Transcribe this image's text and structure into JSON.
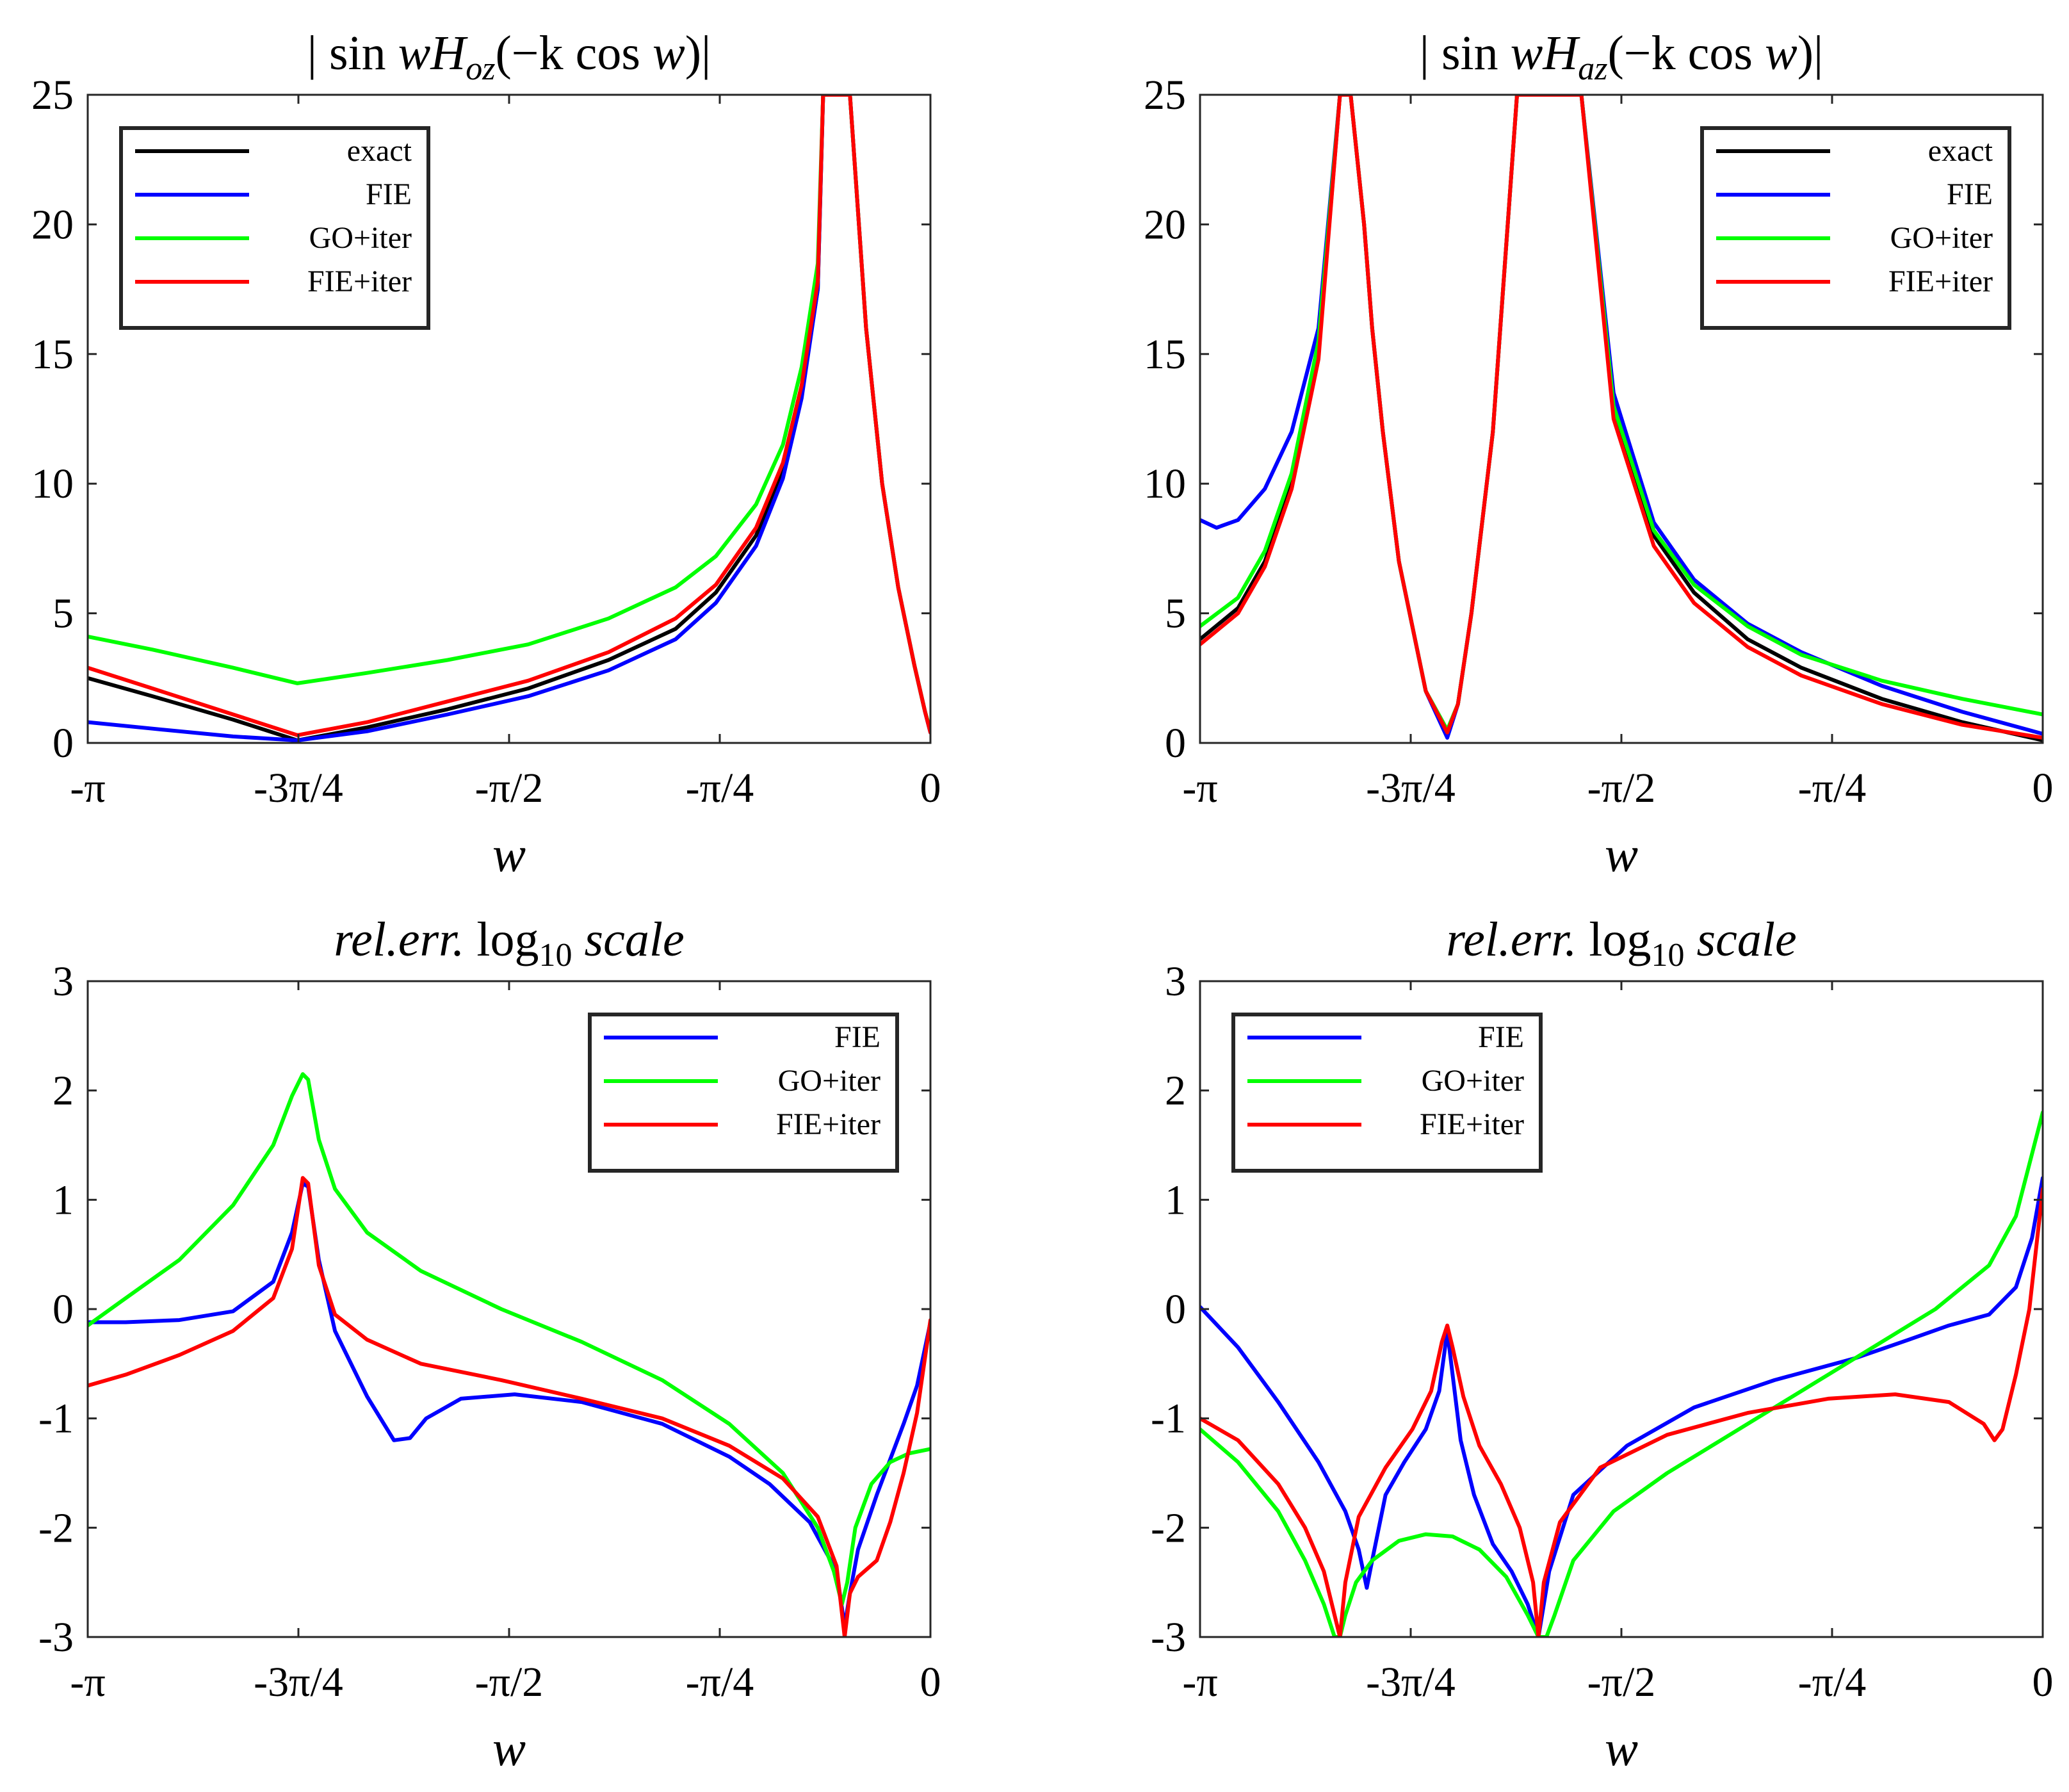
{
  "figure": {
    "panel_count": 4
  },
  "chart_data": [
    {
      "type": "line",
      "title": "|sin wH_oz(−k cos w)|",
      "title_parts": {
        "pre": "| sin ",
        "var": "wH",
        "sub": "oz",
        "mid": "(−k cos ",
        "var2": "w",
        "post": ")|"
      },
      "xlabel": "w",
      "ylabel": "",
      "xlim": [
        -3.14159,
        0
      ],
      "ylim": [
        0,
        25
      ],
      "xtick_values": [
        -3.14159,
        -2.35619,
        -1.5708,
        -0.7854,
        0
      ],
      "xtick_labels": [
        "-π",
        "-3π/4",
        "-π/2",
        "-π/4",
        "0"
      ],
      "ytick_values": [
        0,
        5,
        10,
        15,
        20,
        25
      ],
      "ytick_labels": [
        "0",
        "5",
        "10",
        "15",
        "20",
        "25"
      ],
      "legend_position": "top-left",
      "series": [
        {
          "name": "exact",
          "color": "#000000",
          "x": [
            -3.1416,
            -2.9,
            -2.6,
            -2.36,
            -2.1,
            -1.8,
            -1.5,
            -1.2,
            -0.95,
            -0.8,
            -0.65,
            -0.55,
            -0.48,
            -0.42,
            -0.4,
            -0.3,
            -0.24,
            -0.18,
            -0.12,
            -0.06,
            -0.02,
            0
          ],
          "y": [
            2.5,
            1.8,
            0.9,
            0.1,
            0.6,
            1.3,
            2.1,
            3.2,
            4.4,
            5.8,
            8.0,
            10.5,
            13.5,
            17.5,
            25.0,
            25.0,
            16.0,
            10.0,
            6.0,
            3.0,
            1.2,
            0.4
          ]
        },
        {
          "name": "FIE",
          "color": "#0000ff",
          "x": [
            -3.1416,
            -2.9,
            -2.6,
            -2.36,
            -2.1,
            -1.8,
            -1.5,
            -1.2,
            -0.95,
            -0.8,
            -0.65,
            -0.55,
            -0.48,
            -0.42,
            -0.4,
            -0.3,
            -0.24,
            -0.18,
            -0.12,
            -0.06,
            -0.02,
            0
          ],
          "y": [
            0.8,
            0.55,
            0.25,
            0.1,
            0.45,
            1.1,
            1.8,
            2.8,
            4.0,
            5.4,
            7.6,
            10.2,
            13.3,
            17.5,
            25.0,
            25.0,
            16.0,
            10.0,
            6.0,
            3.0,
            1.2,
            0.4
          ]
        },
        {
          "name": "GO+iter",
          "color": "#00ff00",
          "x": [
            -3.1416,
            -2.9,
            -2.6,
            -2.36,
            -2.1,
            -1.8,
            -1.5,
            -1.2,
            -0.95,
            -0.8,
            -0.65,
            -0.55,
            -0.48,
            -0.42,
            -0.4,
            -0.3,
            -0.24,
            -0.18,
            -0.12,
            -0.06,
            -0.02,
            0
          ],
          "y": [
            4.1,
            3.6,
            2.9,
            2.3,
            2.7,
            3.2,
            3.8,
            4.8,
            6.0,
            7.2,
            9.2,
            11.5,
            14.5,
            18.5,
            25.0,
            25.0,
            16.0,
            10.0,
            6.0,
            3.0,
            1.2,
            0.5
          ]
        },
        {
          "name": "FIE+iter",
          "color": "#ff0000",
          "x": [
            -3.1416,
            -2.9,
            -2.6,
            -2.36,
            -2.1,
            -1.8,
            -1.5,
            -1.2,
            -0.95,
            -0.8,
            -0.65,
            -0.55,
            -0.48,
            -0.42,
            -0.4,
            -0.3,
            -0.24,
            -0.18,
            -0.12,
            -0.06,
            -0.02,
            0
          ],
          "y": [
            2.9,
            2.1,
            1.1,
            0.3,
            0.8,
            1.6,
            2.4,
            3.5,
            4.8,
            6.1,
            8.3,
            10.8,
            13.8,
            17.8,
            25.0,
            25.0,
            16.0,
            10.0,
            6.0,
            3.0,
            1.2,
            0.4
          ]
        }
      ]
    },
    {
      "type": "line",
      "title": "|sin wH_az(−k cos w)|",
      "title_parts": {
        "pre": "| sin ",
        "var": "wH",
        "sub": "az",
        "mid": "(−k cos ",
        "var2": "w",
        "post": ")|"
      },
      "xlabel": "w",
      "ylabel": "",
      "xlim": [
        -3.14159,
        0
      ],
      "ylim": [
        0,
        25
      ],
      "xtick_values": [
        -3.14159,
        -2.35619,
        -1.5708,
        -0.7854,
        0
      ],
      "xtick_labels": [
        "-π",
        "-3π/4",
        "-π/2",
        "-π/4",
        "0"
      ],
      "ytick_values": [
        0,
        5,
        10,
        15,
        20,
        25
      ],
      "ytick_labels": [
        "0",
        "5",
        "10",
        "15",
        "20",
        "25"
      ],
      "legend_position": "top-right",
      "series": [
        {
          "name": "exact",
          "color": "#000000",
          "x": [
            -3.1416,
            -3.0,
            -2.9,
            -2.8,
            -2.7,
            -2.62,
            -2.58,
            -2.53,
            -2.5,
            -2.46,
            -2.4,
            -2.3,
            -2.22,
            -2.18,
            -2.13,
            -2.05,
            -1.96,
            -1.92,
            -1.76,
            -1.72,
            -1.6,
            -1.45,
            -1.3,
            -1.1,
            -0.9,
            -0.6,
            -0.3,
            0
          ],
          "y": [
            4.0,
            5.2,
            7.0,
            10.0,
            15.0,
            25.0,
            25.0,
            20.0,
            16.0,
            12.0,
            7.0,
            2.0,
            0.3,
            1.5,
            5.0,
            12.0,
            25.0,
            25.0,
            25.0,
            25.0,
            13.0,
            8.0,
            5.8,
            4.0,
            2.9,
            1.7,
            0.8,
            0.1
          ]
        },
        {
          "name": "FIE",
          "color": "#0000ff",
          "x": [
            -3.1416,
            -3.08,
            -3.0,
            -2.9,
            -2.8,
            -2.7,
            -2.62,
            -2.58,
            -2.53,
            -2.5,
            -2.46,
            -2.4,
            -2.3,
            -2.22,
            -2.18,
            -2.13,
            -2.05,
            -1.96,
            -1.92,
            -1.76,
            -1.72,
            -1.6,
            -1.45,
            -1.3,
            -1.1,
            -0.9,
            -0.6,
            -0.3,
            0
          ],
          "y": [
            8.6,
            8.3,
            8.6,
            9.8,
            12.0,
            16.0,
            25.0,
            25.0,
            20.0,
            16.0,
            12.0,
            7.0,
            2.0,
            0.2,
            1.5,
            5.0,
            12.0,
            25.0,
            25.0,
            25.0,
            25.0,
            13.5,
            8.5,
            6.3,
            4.6,
            3.5,
            2.2,
            1.2,
            0.35
          ]
        },
        {
          "name": "GO+iter",
          "color": "#00ff00",
          "x": [
            -3.1416,
            -3.0,
            -2.9,
            -2.8,
            -2.7,
            -2.62,
            -2.58,
            -2.53,
            -2.5,
            -2.46,
            -2.4,
            -2.3,
            -2.22,
            -2.18,
            -2.13,
            -2.05,
            -1.96,
            -1.92,
            -1.76,
            -1.72,
            -1.6,
            -1.45,
            -1.3,
            -1.1,
            -0.9,
            -0.6,
            -0.3,
            0
          ],
          "y": [
            4.5,
            5.6,
            7.4,
            10.4,
            15.5,
            25.0,
            25.0,
            20.0,
            16.0,
            12.0,
            7.0,
            2.0,
            0.5,
            1.5,
            5.0,
            12.0,
            25.0,
            25.0,
            25.0,
            25.0,
            13.0,
            8.2,
            6.1,
            4.5,
            3.4,
            2.4,
            1.7,
            1.1
          ]
        },
        {
          "name": "FIE+iter",
          "color": "#ff0000",
          "x": [
            -3.1416,
            -3.0,
            -2.9,
            -2.8,
            -2.7,
            -2.62,
            -2.58,
            -2.53,
            -2.5,
            -2.46,
            -2.4,
            -2.3,
            -2.22,
            -2.18,
            -2.13,
            -2.05,
            -1.96,
            -1.92,
            -1.76,
            -1.72,
            -1.6,
            -1.45,
            -1.3,
            -1.1,
            -0.9,
            -0.6,
            -0.3,
            0
          ],
          "y": [
            3.8,
            5.0,
            6.8,
            9.8,
            14.8,
            25.0,
            25.0,
            20.0,
            16.0,
            12.0,
            7.0,
            2.0,
            0.4,
            1.5,
            5.0,
            12.0,
            25.0,
            25.0,
            25.0,
            25.0,
            12.5,
            7.6,
            5.4,
            3.7,
            2.6,
            1.5,
            0.7,
            0.2
          ]
        }
      ]
    },
    {
      "type": "line",
      "title": "rel.err. log10 scale",
      "title_parts": {
        "pre": "rel.err.",
        "func": "log",
        "sub": "10",
        "post": "scale"
      },
      "xlabel": "w",
      "ylabel": "",
      "xlim": [
        -3.14159,
        0
      ],
      "ylim": [
        -3,
        3
      ],
      "xtick_values": [
        -3.14159,
        -2.35619,
        -1.5708,
        -0.7854,
        0
      ],
      "xtick_labels": [
        "-π",
        "-3π/4",
        "-π/2",
        "-π/4",
        "0"
      ],
      "ytick_values": [
        -3,
        -2,
        -1,
        0,
        1,
        2,
        3
      ],
      "ytick_labels": [
        "-3",
        "-2",
        "-1",
        "0",
        "1",
        "2",
        "3"
      ],
      "legend_position": "top-right",
      "series": [
        {
          "name": "FIE",
          "color": "#0000ff",
          "x": [
            -3.1416,
            -3.0,
            -2.8,
            -2.6,
            -2.45,
            -2.38,
            -2.34,
            -2.32,
            -2.28,
            -2.22,
            -2.1,
            -2.0,
            -1.94,
            -1.88,
            -1.75,
            -1.55,
            -1.3,
            -1.0,
            -0.75,
            -0.6,
            -0.45,
            -0.35,
            -0.32,
            -0.3,
            -0.27,
            -0.2,
            -0.1,
            -0.05,
            0
          ],
          "y": [
            -0.12,
            -0.12,
            -0.1,
            -0.02,
            0.25,
            0.7,
            1.15,
            1.12,
            0.45,
            -0.2,
            -0.8,
            -1.2,
            -1.18,
            -1.0,
            -0.82,
            -0.78,
            -0.85,
            -1.05,
            -1.35,
            -1.6,
            -1.95,
            -2.4,
            -2.9,
            -2.6,
            -2.2,
            -1.7,
            -1.05,
            -0.7,
            -0.12
          ]
        },
        {
          "name": "GO+iter",
          "color": "#00ff00",
          "x": [
            -3.1416,
            -3.0,
            -2.8,
            -2.6,
            -2.45,
            -2.38,
            -2.34,
            -2.32,
            -2.28,
            -2.22,
            -2.1,
            -1.9,
            -1.6,
            -1.3,
            -1.0,
            -0.75,
            -0.55,
            -0.42,
            -0.36,
            -0.33,
            -0.31,
            -0.28,
            -0.22,
            -0.15,
            -0.08,
            0
          ],
          "y": [
            -0.15,
            0.1,
            0.45,
            0.95,
            1.5,
            1.95,
            2.15,
            2.1,
            1.55,
            1.1,
            0.7,
            0.35,
            0.0,
            -0.3,
            -0.65,
            -1.05,
            -1.5,
            -2.0,
            -2.4,
            -2.7,
            -2.5,
            -2.0,
            -1.6,
            -1.4,
            -1.32,
            -1.28
          ]
        },
        {
          "name": "FIE+iter",
          "color": "#ff0000",
          "x": [
            -3.1416,
            -3.0,
            -2.8,
            -2.6,
            -2.45,
            -2.38,
            -2.34,
            -2.32,
            -2.28,
            -2.22,
            -2.1,
            -1.9,
            -1.6,
            -1.3,
            -1.0,
            -0.75,
            -0.55,
            -0.42,
            -0.35,
            -0.32,
            -0.3,
            -0.27,
            -0.2,
            -0.15,
            -0.1,
            -0.05,
            0
          ],
          "y": [
            -0.7,
            -0.6,
            -0.42,
            -0.2,
            0.1,
            0.55,
            1.2,
            1.15,
            0.4,
            -0.05,
            -0.28,
            -0.5,
            -0.65,
            -0.82,
            -1.0,
            -1.25,
            -1.55,
            -1.9,
            -2.35,
            -3.0,
            -2.6,
            -2.45,
            -2.3,
            -1.95,
            -1.5,
            -0.95,
            -0.1
          ]
        }
      ]
    },
    {
      "type": "line",
      "title": "rel.err. log10 scale",
      "title_parts": {
        "pre": "rel.err.",
        "func": "log",
        "sub": "10",
        "post": "scale"
      },
      "xlabel": "w",
      "ylabel": "",
      "xlim": [
        -3.14159,
        0
      ],
      "ylim": [
        -3,
        3
      ],
      "xtick_values": [
        -3.14159,
        -2.35619,
        -1.5708,
        -0.7854,
        0
      ],
      "xtick_labels": [
        "-π",
        "-3π/4",
        "-π/2",
        "-π/4",
        "0"
      ],
      "ytick_values": [
        -3,
        -2,
        -1,
        0,
        1,
        2,
        3
      ],
      "ytick_labels": [
        "-3",
        "-2",
        "-1",
        "0",
        "1",
        "2",
        "3"
      ],
      "legend_position": "top-left",
      "series": [
        {
          "name": "FIE",
          "color": "#0000ff",
          "x": [
            -3.1416,
            -3.0,
            -2.85,
            -2.7,
            -2.6,
            -2.55,
            -2.52,
            -2.5,
            -2.45,
            -2.38,
            -2.3,
            -2.25,
            -2.22,
            -2.2,
            -2.17,
            -2.12,
            -2.05,
            -1.98,
            -1.92,
            -1.88,
            -1.86,
            -1.84,
            -1.75,
            -1.55,
            -1.3,
            -1.0,
            -0.7,
            -0.5,
            -0.35,
            -0.2,
            -0.1,
            -0.04,
            0
          ],
          "y": [
            0.02,
            -0.35,
            -0.85,
            -1.4,
            -1.85,
            -2.2,
            -2.55,
            -2.3,
            -1.7,
            -1.4,
            -1.1,
            -0.75,
            -0.2,
            -0.6,
            -1.2,
            -1.7,
            -2.15,
            -2.4,
            -2.7,
            -3.0,
            -2.7,
            -2.4,
            -1.7,
            -1.25,
            -0.9,
            -0.65,
            -0.45,
            -0.28,
            -0.15,
            -0.05,
            0.2,
            0.65,
            1.2
          ]
        },
        {
          "name": "GO+iter",
          "color": "#00ff00",
          "x": [
            -3.1416,
            -3.0,
            -2.85,
            -2.75,
            -2.68,
            -2.64,
            -2.62,
            -2.6,
            -2.56,
            -2.5,
            -2.4,
            -2.3,
            -2.2,
            -2.1,
            -2.0,
            -1.92,
            -1.88,
            -1.85,
            -1.82,
            -1.75,
            -1.6,
            -1.4,
            -1.2,
            -1.0,
            -0.8,
            -0.6,
            -0.4,
            -0.2,
            -0.1,
            0
          ],
          "y": [
            -1.1,
            -1.4,
            -1.85,
            -2.3,
            -2.7,
            -3.0,
            -3.0,
            -2.8,
            -2.5,
            -2.3,
            -2.12,
            -2.06,
            -2.08,
            -2.2,
            -2.45,
            -2.8,
            -3.0,
            -3.0,
            -2.8,
            -2.3,
            -1.85,
            -1.5,
            -1.2,
            -0.9,
            -0.6,
            -0.3,
            0.0,
            0.4,
            0.85,
            1.8
          ]
        },
        {
          "name": "FIE+iter",
          "color": "#ff0000",
          "x": [
            -3.1416,
            -3.0,
            -2.85,
            -2.75,
            -2.68,
            -2.64,
            -2.62,
            -2.6,
            -2.55,
            -2.45,
            -2.35,
            -2.28,
            -2.24,
            -2.22,
            -2.2,
            -2.16,
            -2.1,
            -2.02,
            -1.95,
            -1.9,
            -1.88,
            -1.86,
            -1.8,
            -1.65,
            -1.4,
            -1.1,
            -0.8,
            -0.55,
            -0.35,
            -0.22,
            -0.18,
            -0.15,
            -0.1,
            -0.05,
            0
          ],
          "y": [
            -1.0,
            -1.2,
            -1.6,
            -2.0,
            -2.4,
            -2.8,
            -3.0,
            -2.5,
            -1.9,
            -1.45,
            -1.1,
            -0.75,
            -0.3,
            -0.15,
            -0.35,
            -0.8,
            -1.25,
            -1.6,
            -2.0,
            -2.5,
            -3.0,
            -2.5,
            -1.95,
            -1.45,
            -1.15,
            -0.95,
            -0.82,
            -0.78,
            -0.85,
            -1.05,
            -1.2,
            -1.1,
            -0.6,
            0.0,
            1.1
          ]
        }
      ]
    }
  ]
}
